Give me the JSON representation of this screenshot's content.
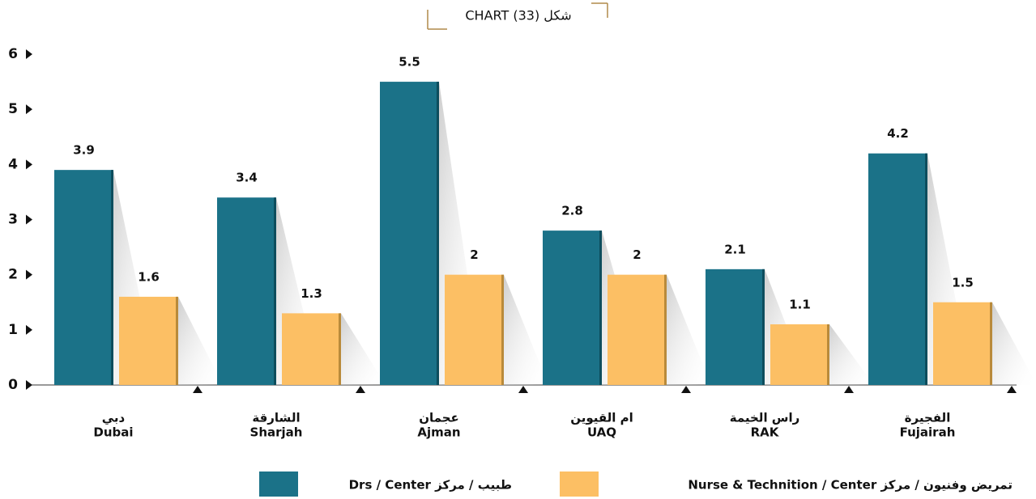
{
  "chart_data": {
    "type": "bar",
    "title": "شكل (33) CHART",
    "categories": [
      [
        "دبي",
        "Dubai"
      ],
      [
        "الشارقة",
        "Sharjah"
      ],
      [
        "عجمان",
        "Ajman"
      ],
      [
        "ام القيوين",
        "UAQ"
      ],
      [
        "راس الخيمة",
        "RAK"
      ],
      [
        "الفجيرة",
        "Fujairah"
      ]
    ],
    "series": [
      {
        "name": "طبيب / مركز Drs / Center",
        "color": "#1b7288",
        "values": [
          3.9,
          3.4,
          5.5,
          2.8,
          2.1,
          4.2
        ]
      },
      {
        "name": "تمريض وفنيون / مركز Nurse & Technition / Center",
        "color": "#fcbf64",
        "values": [
          1.6,
          1.3,
          2,
          2,
          1.1,
          1.5
        ]
      }
    ],
    "ylim": [
      0,
      6
    ],
    "yticks": [
      0,
      1,
      2,
      3,
      4,
      5,
      6
    ]
  }
}
